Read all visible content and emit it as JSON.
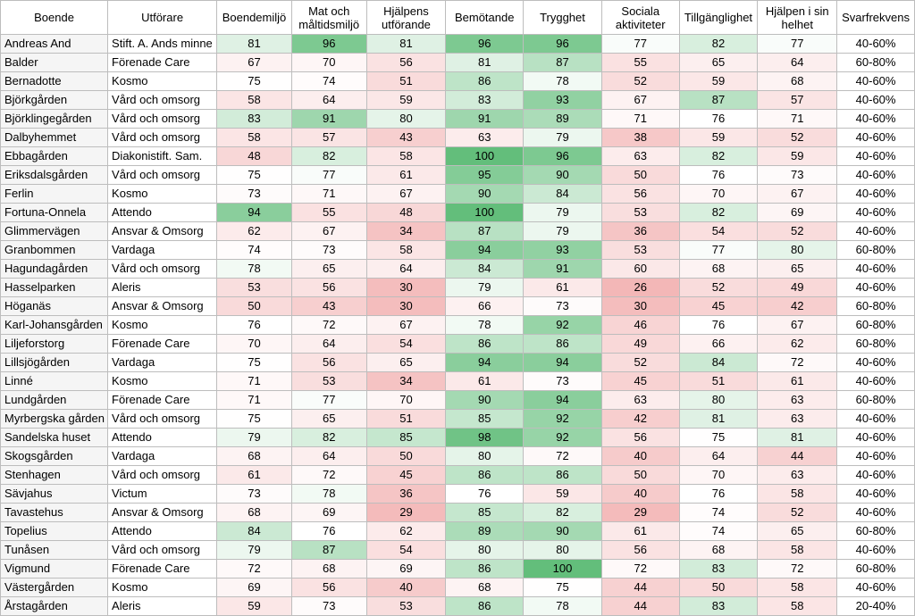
{
  "chart_data": {
    "type": "table",
    "color_scale": {
      "low": "#f3b7b7",
      "mid": "#ffffff",
      "high": "#63be7b",
      "min": 26,
      "max": 100
    },
    "columns": [
      "Boende",
      "Utförare",
      "Boendemiljö",
      "Mat och måltidsmiljö",
      "Hjälpens utförande",
      "Bemötande",
      "Trygghet",
      "Sociala aktiviteter",
      "Tillgänglighet",
      "Hjälpen i sin helhet",
      "Svarfrekvens"
    ],
    "rows": [
      {
        "boende": "Andreas And",
        "utforare": "Stift. A. Ands minne",
        "values": [
          81,
          96,
          81,
          96,
          96,
          77,
          82,
          77
        ],
        "svarfrekvens": "40-60%"
      },
      {
        "boende": "Balder",
        "utforare": "Förenade Care",
        "values": [
          67,
          70,
          56,
          81,
          87,
          55,
          65,
          64
        ],
        "svarfrekvens": "60-80%"
      },
      {
        "boende": "Bernadotte",
        "utforare": "Kosmo",
        "values": [
          75,
          74,
          51,
          86,
          78,
          52,
          59,
          68
        ],
        "svarfrekvens": "40-60%"
      },
      {
        "boende": "Björkgården",
        "utforare": "Vård och omsorg",
        "values": [
          58,
          64,
          59,
          83,
          93,
          67,
          87,
          57
        ],
        "svarfrekvens": "40-60%"
      },
      {
        "boende": "Björklingegården",
        "utforare": "Vård och omsorg",
        "values": [
          83,
          91,
          80,
          91,
          89,
          71,
          76,
          71
        ],
        "svarfrekvens": "40-60%"
      },
      {
        "boende": "Dalbyhemmet",
        "utforare": "Vård och omsorg",
        "values": [
          58,
          57,
          43,
          63,
          79,
          38,
          59,
          52
        ],
        "svarfrekvens": "40-60%"
      },
      {
        "boende": "Ebbagården",
        "utforare": "Diakonistift. Sam.",
        "values": [
          48,
          82,
          58,
          100,
          96,
          63,
          82,
          59
        ],
        "svarfrekvens": "40-60%"
      },
      {
        "boende": "Eriksdalsgården",
        "utforare": "Vård och omsorg",
        "values": [
          75,
          77,
          61,
          95,
          90,
          50,
          76,
          73
        ],
        "svarfrekvens": "40-60%"
      },
      {
        "boende": "Ferlin",
        "utforare": "Kosmo",
        "values": [
          73,
          71,
          67,
          90,
          84,
          56,
          70,
          67
        ],
        "svarfrekvens": "40-60%"
      },
      {
        "boende": "Fortuna-Onnela",
        "utforare": "Attendo",
        "values": [
          94,
          55,
          48,
          100,
          79,
          53,
          82,
          69
        ],
        "svarfrekvens": "40-60%"
      },
      {
        "boende": "Glimmervägen",
        "utforare": "Ansvar & Omsorg",
        "values": [
          62,
          67,
          34,
          87,
          79,
          36,
          54,
          52
        ],
        "svarfrekvens": "40-60%"
      },
      {
        "boende": "Granbommen",
        "utforare": "Vardaga",
        "values": [
          74,
          73,
          58,
          94,
          93,
          53,
          77,
          80
        ],
        "svarfrekvens": "60-80%"
      },
      {
        "boende": "Hagundagården",
        "utforare": "Vård och omsorg",
        "values": [
          78,
          65,
          64,
          84,
          91,
          60,
          68,
          65
        ],
        "svarfrekvens": "40-60%"
      },
      {
        "boende": "Hasselparken",
        "utforare": "Aleris",
        "values": [
          53,
          56,
          30,
          79,
          61,
          26,
          52,
          49
        ],
        "svarfrekvens": "40-60%"
      },
      {
        "boende": "Höganäs",
        "utforare": "Ansvar & Omsorg",
        "values": [
          50,
          43,
          30,
          66,
          73,
          30,
          45,
          42
        ],
        "svarfrekvens": "60-80%"
      },
      {
        "boende": "Karl-Johansgården",
        "utforare": "Kosmo",
        "values": [
          76,
          72,
          67,
          78,
          92,
          46,
          76,
          67
        ],
        "svarfrekvens": "60-80%"
      },
      {
        "boende": "Liljeforstorg",
        "utforare": "Förenade Care",
        "values": [
          70,
          64,
          54,
          86,
          86,
          49,
          66,
          62
        ],
        "svarfrekvens": "60-80%"
      },
      {
        "boende": "Lillsjögården",
        "utforare": "Vardaga",
        "values": [
          75,
          56,
          65,
          94,
          94,
          52,
          84,
          72
        ],
        "svarfrekvens": "40-60%"
      },
      {
        "boende": "Linné",
        "utforare": "Kosmo",
        "values": [
          71,
          53,
          34,
          61,
          73,
          45,
          51,
          61
        ],
        "svarfrekvens": "40-60%"
      },
      {
        "boende": "Lundgården",
        "utforare": "Förenade Care",
        "values": [
          71,
          77,
          70,
          90,
          94,
          63,
          80,
          63
        ],
        "svarfrekvens": "60-80%"
      },
      {
        "boende": "Myrbergska gården",
        "utforare": "Vård och omsorg",
        "values": [
          75,
          65,
          51,
          85,
          92,
          42,
          81,
          63
        ],
        "svarfrekvens": "40-60%"
      },
      {
        "boende": "Sandelska huset",
        "utforare": "Attendo",
        "values": [
          79,
          82,
          85,
          98,
          92,
          56,
          75,
          81
        ],
        "svarfrekvens": "40-60%"
      },
      {
        "boende": "Skogsgården",
        "utforare": "Vardaga",
        "values": [
          68,
          64,
          50,
          80,
          72,
          40,
          64,
          44
        ],
        "svarfrekvens": "40-60%"
      },
      {
        "boende": "Stenhagen",
        "utforare": "Vård och omsorg",
        "values": [
          61,
          72,
          45,
          86,
          86,
          50,
          70,
          63
        ],
        "svarfrekvens": "40-60%"
      },
      {
        "boende": "Sävjahus",
        "utforare": "Victum",
        "values": [
          73,
          78,
          36,
          76,
          59,
          40,
          76,
          58
        ],
        "svarfrekvens": "40-60%"
      },
      {
        "boende": "Tavastehus",
        "utforare": "Ansvar & Omsorg",
        "values": [
          68,
          69,
          29,
          85,
          82,
          29,
          74,
          52
        ],
        "svarfrekvens": "40-60%"
      },
      {
        "boende": "Topelius",
        "utforare": "Attendo",
        "values": [
          84,
          76,
          62,
          89,
          90,
          61,
          74,
          65
        ],
        "svarfrekvens": "60-80%"
      },
      {
        "boende": "Tunåsen",
        "utforare": "Vård och omsorg",
        "values": [
          79,
          87,
          54,
          80,
          80,
          56,
          68,
          58
        ],
        "svarfrekvens": "40-60%"
      },
      {
        "boende": "Vigmund",
        "utforare": "Förenade Care",
        "values": [
          72,
          68,
          69,
          86,
          100,
          72,
          83,
          72
        ],
        "svarfrekvens": "60-80%"
      },
      {
        "boende": "Västergården",
        "utforare": "Kosmo",
        "values": [
          69,
          56,
          40,
          68,
          75,
          44,
          50,
          58
        ],
        "svarfrekvens": "40-60%"
      },
      {
        "boende": "Årstagården",
        "utforare": "Aleris",
        "values": [
          59,
          73,
          53,
          86,
          78,
          44,
          83,
          58
        ],
        "svarfrekvens": "20-40%"
      }
    ]
  }
}
